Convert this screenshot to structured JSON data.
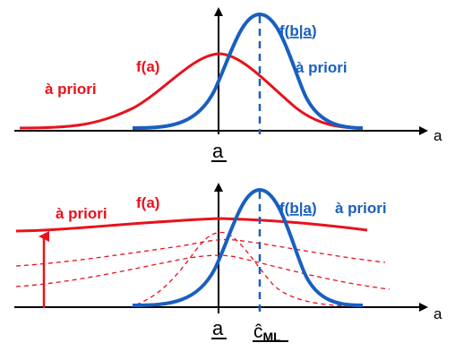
{
  "colors": {
    "prior": "#e8121b",
    "likelihood": "#1a5fbf",
    "axis": "#000000"
  },
  "top_panel": {
    "prior_curve_label": "f(a)",
    "prior_text": "à priori",
    "likelihood_label_prefix": "f(",
    "likelihood_label_b": "b",
    "likelihood_label_sep": "|",
    "likelihood_label_a": "a",
    "likelihood_label_suffix": ")",
    "likelihood_text": "à priori",
    "x_axis_label": "a",
    "under_a_label": "a"
  },
  "bottom_panel": {
    "prior_text": "à priori",
    "prior_curve_label": "f(a)",
    "likelihood_label_prefix": "f(",
    "likelihood_label_b": "b",
    "likelihood_label_sep": "|",
    "likelihood_label_a": "a",
    "likelihood_label_suffix": ")",
    "likelihood_text": "à priori",
    "x_axis_label": "a",
    "under_a_label": "a",
    "estimate_symbol": "ĉ",
    "estimate_subscript": "ML"
  }
}
